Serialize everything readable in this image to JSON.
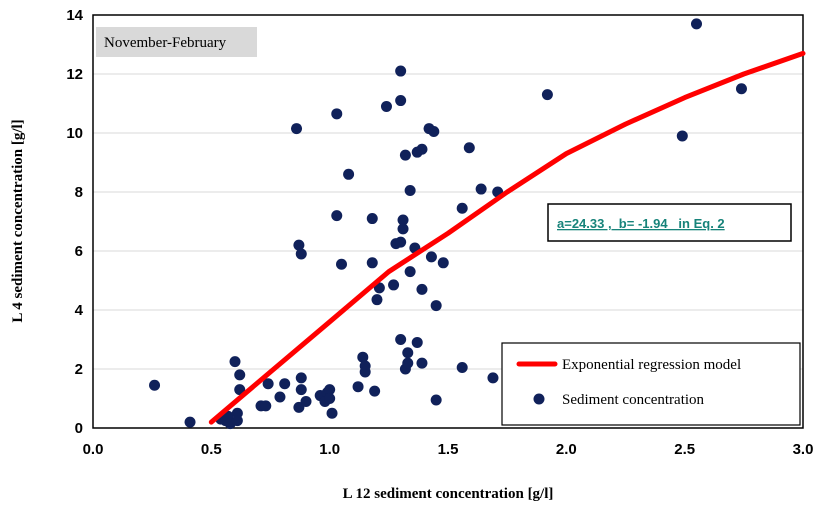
{
  "chart_data": {
    "type": "scatter",
    "title": "",
    "annotation_box": "November-February",
    "equation_label": "a=24.33 ,  b= -1.94   in Eq. 2",
    "xlabel": "L 12 sediment concentration [g/l]",
    "ylabel": "L 4 sediment concentration [g/l]",
    "xlim": [
      0.0,
      3.0
    ],
    "ylim": [
      0,
      14
    ],
    "x_ticks": [
      "0.0",
      "0.5",
      "1.0",
      "1.5",
      "2.0",
      "2.5",
      "3.0"
    ],
    "y_ticks": [
      "0",
      "2",
      "4",
      "6",
      "8",
      "10",
      "12",
      "14"
    ],
    "grid": "horizontal",
    "legend_position": "bottom-right",
    "colors": {
      "model": "#ff0000",
      "points": "#10215a"
    },
    "series": [
      {
        "name": "Exponential regression model",
        "kind": "line",
        "x": [
          0.5,
          0.75,
          1.0,
          1.25,
          1.5,
          1.75,
          2.0,
          2.25,
          2.5,
          2.75,
          3.0
        ],
        "y": [
          0.2,
          1.9,
          3.6,
          5.3,
          6.6,
          8.0,
          9.3,
          10.3,
          11.2,
          12.0,
          12.7
        ]
      },
      {
        "name": "Sediment concentration",
        "kind": "scatter",
        "points": [
          [
            0.26,
            1.45
          ],
          [
            0.41,
            0.2
          ],
          [
            0.54,
            0.3
          ],
          [
            0.56,
            0.25
          ],
          [
            0.57,
            0.4
          ],
          [
            0.58,
            0.15
          ],
          [
            0.6,
            2.25
          ],
          [
            0.61,
            0.5
          ],
          [
            0.61,
            0.25
          ],
          [
            0.62,
            1.8
          ],
          [
            0.62,
            1.3
          ],
          [
            0.71,
            0.75
          ],
          [
            0.73,
            0.75
          ],
          [
            0.74,
            1.5
          ],
          [
            0.79,
            1.05
          ],
          [
            0.81,
            1.5
          ],
          [
            0.86,
            10.15
          ],
          [
            0.87,
            6.2
          ],
          [
            0.87,
            0.7
          ],
          [
            0.88,
            5.9
          ],
          [
            0.88,
            1.7
          ],
          [
            0.88,
            1.3
          ],
          [
            0.9,
            0.9
          ],
          [
            0.96,
            1.1
          ],
          [
            0.98,
            0.9
          ],
          [
            0.99,
            1.2
          ],
          [
            1.0,
            1.3
          ],
          [
            1.0,
            1.0
          ],
          [
            1.01,
            0.5
          ],
          [
            1.03,
            10.65
          ],
          [
            1.03,
            7.2
          ],
          [
            1.05,
            5.55
          ],
          [
            1.08,
            8.6
          ],
          [
            1.12,
            1.4
          ],
          [
            1.14,
            2.4
          ],
          [
            1.15,
            2.1
          ],
          [
            1.15,
            1.9
          ],
          [
            1.18,
            7.1
          ],
          [
            1.18,
            5.6
          ],
          [
            1.19,
            1.25
          ],
          [
            1.2,
            4.35
          ],
          [
            1.21,
            4.75
          ],
          [
            1.24,
            10.9
          ],
          [
            1.27,
            4.85
          ],
          [
            1.28,
            6.25
          ],
          [
            1.3,
            12.1
          ],
          [
            1.3,
            11.1
          ],
          [
            1.3,
            6.3
          ],
          [
            1.3,
            3.0
          ],
          [
            1.31,
            7.05
          ],
          [
            1.31,
            6.75
          ],
          [
            1.32,
            9.25
          ],
          [
            1.32,
            2.0
          ],
          [
            1.33,
            2.55
          ],
          [
            1.33,
            2.2
          ],
          [
            1.34,
            8.05
          ],
          [
            1.34,
            5.3
          ],
          [
            1.36,
            6.1
          ],
          [
            1.37,
            9.35
          ],
          [
            1.37,
            2.9
          ],
          [
            1.39,
            9.45
          ],
          [
            1.39,
            4.7
          ],
          [
            1.39,
            2.2
          ],
          [
            1.42,
            10.15
          ],
          [
            1.43,
            5.8
          ],
          [
            1.44,
            10.05
          ],
          [
            1.45,
            4.15
          ],
          [
            1.45,
            0.95
          ],
          [
            1.48,
            5.6
          ],
          [
            1.56,
            7.45
          ],
          [
            1.56,
            2.05
          ],
          [
            1.59,
            9.5
          ],
          [
            1.64,
            8.1
          ],
          [
            1.69,
            1.7
          ],
          [
            1.71,
            8.0
          ],
          [
            1.92,
            11.3
          ],
          [
            2.49,
            9.9
          ],
          [
            2.55,
            13.7
          ],
          [
            2.74,
            11.5
          ]
        ]
      }
    ]
  }
}
